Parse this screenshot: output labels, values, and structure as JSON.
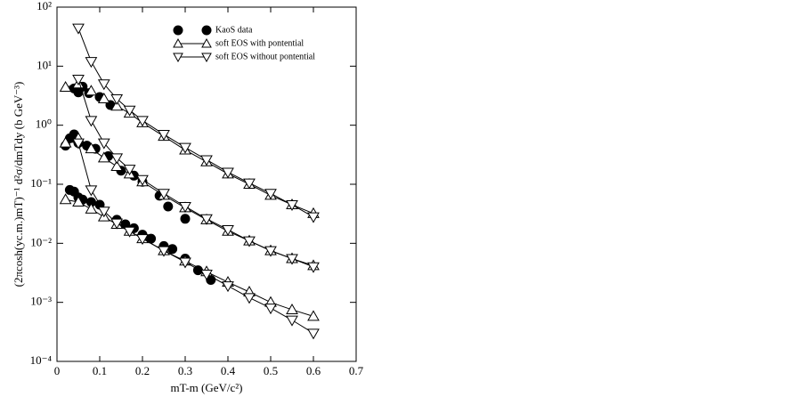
{
  "chart_data": {
    "type": "line",
    "xlabel": "mT-m (GeV/c²)",
    "ylabel": "(2πcosh(yc.m.)mT)⁻¹ d²σ/dmTdy (b GeV⁻³)",
    "xlim": [
      0,
      0.7
    ],
    "xticks": [
      0,
      0.1,
      0.2,
      0.3,
      0.4,
      0.5,
      0.6,
      0.7
    ],
    "ylim": [
      0.0001,
      100
    ],
    "yscale": "log",
    "yticks": [
      {
        "value": 0.0001,
        "label": "10⁻⁴"
      },
      {
        "value": 0.001,
        "label": "10⁻³"
      },
      {
        "value": 0.01,
        "label": "10⁻²"
      },
      {
        "value": 0.1,
        "label": "10⁻¹"
      },
      {
        "value": 1,
        "label": "10⁰"
      },
      {
        "value": 10,
        "label": "10¹"
      },
      {
        "value": 100,
        "label": "10²"
      }
    ],
    "legend": "upper right",
    "series": [
      {
        "name": "KaoS data",
        "marker": "circle",
        "color": "#000000",
        "line": false,
        "sets": [
          {
            "x": [
              0.04,
              0.05,
              0.06,
              0.075,
              0.1,
              0.125
            ],
            "values": [
              4.2,
              3.6,
              4.5,
              3.5,
              3.0,
              2.2
            ]
          },
          {
            "x": [
              0.02,
              0.03,
              0.04,
              0.05,
              0.07,
              0.09,
              0.12,
              0.15,
              0.18,
              0.2,
              0.24,
              0.26,
              0.3
            ],
            "values": [
              0.45,
              0.6,
              0.7,
              0.5,
              0.45,
              0.4,
              0.3,
              0.17,
              0.14,
              0.11,
              0.064,
              0.042,
              0.026
            ]
          },
          {
            "x": [
              0.03,
              0.04,
              0.05,
              0.06,
              0.08,
              0.1,
              0.14,
              0.16,
              0.18,
              0.2,
              0.22,
              0.25,
              0.27,
              0.3,
              0.33,
              0.36
            ],
            "values": [
              0.08,
              0.075,
              0.06,
              0.055,
              0.05,
              0.045,
              0.025,
              0.021,
              0.018,
              0.014,
              0.012,
              0.009,
              0.008,
              0.0055,
              0.0035,
              0.0024
            ]
          }
        ]
      },
      {
        "name": "soft EOS with pontential",
        "marker": "triangle-up",
        "color": "#000000",
        "line": true,
        "sets": [
          {
            "x": [
              0.02,
              0.05,
              0.08,
              0.11,
              0.14,
              0.17,
              0.2,
              0.25,
              0.3,
              0.35,
              0.4,
              0.45,
              0.5,
              0.55,
              0.6
            ],
            "values": [
              4.4,
              5.0,
              3.8,
              2.8,
              2.1,
              1.6,
              1.1,
              0.65,
              0.38,
              0.24,
              0.15,
              0.1,
              0.065,
              0.045,
              0.032
            ]
          },
          {
            "x": [
              0.02,
              0.05,
              0.08,
              0.11,
              0.14,
              0.17,
              0.2,
              0.25,
              0.3,
              0.35,
              0.4,
              0.45,
              0.5,
              0.55,
              0.6
            ],
            "values": [
              0.5,
              0.6,
              0.4,
              0.28,
              0.2,
              0.15,
              0.11,
              0.065,
              0.04,
              0.025,
              0.016,
              0.011,
              0.0075,
              0.0055,
              0.0042
            ]
          },
          {
            "x": [
              0.02,
              0.05,
              0.08,
              0.11,
              0.14,
              0.17,
              0.2,
              0.25,
              0.3,
              0.35,
              0.4,
              0.45,
              0.5,
              0.55,
              0.6
            ],
            "values": [
              0.055,
              0.05,
              0.038,
              0.028,
              0.021,
              0.016,
              0.012,
              0.0075,
              0.005,
              0.0033,
              0.0022,
              0.0015,
              0.001,
              0.00075,
              0.00058
            ]
          }
        ]
      },
      {
        "name": "soft EOS without pontential",
        "marker": "triangle-down",
        "color": "#000000",
        "line": true,
        "sets": [
          {
            "x": [
              0.05,
              0.08,
              0.11,
              0.14,
              0.17,
              0.2,
              0.25,
              0.3,
              0.35,
              0.4,
              0.45,
              0.5,
              0.55,
              0.6
            ],
            "values": [
              44,
              12,
              5,
              2.8,
              1.8,
              1.2,
              0.7,
              0.42,
              0.26,
              0.16,
              0.105,
              0.07,
              0.045,
              0.028
            ]
          },
          {
            "x": [
              0.05,
              0.08,
              0.11,
              0.14,
              0.17,
              0.2,
              0.25,
              0.3,
              0.35,
              0.4,
              0.45,
              0.5,
              0.55,
              0.6
            ],
            "values": [
              6,
              1.2,
              0.5,
              0.28,
              0.18,
              0.12,
              0.07,
              0.042,
              0.026,
              0.017,
              0.011,
              0.0075,
              0.0055,
              0.004
            ]
          },
          {
            "x": [
              0.05,
              0.08,
              0.11,
              0.14,
              0.17,
              0.2,
              0.25,
              0.3,
              0.35,
              0.4,
              0.45,
              0.5,
              0.55,
              0.6
            ],
            "values": [
              0.5,
              0.08,
              0.035,
              0.022,
              0.016,
              0.012,
              0.0075,
              0.0048,
              0.003,
              0.0019,
              0.0012,
              0.0008,
              0.0005,
              0.0003
            ]
          }
        ]
      }
    ]
  }
}
